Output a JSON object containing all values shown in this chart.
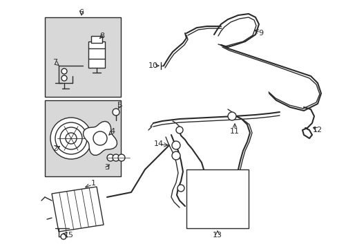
{
  "bg_color": "#ffffff",
  "line_color": "#2a2a2a",
  "box_fill": "#d8d8d8",
  "fig_width": 4.89,
  "fig_height": 3.6,
  "dpi": 100
}
